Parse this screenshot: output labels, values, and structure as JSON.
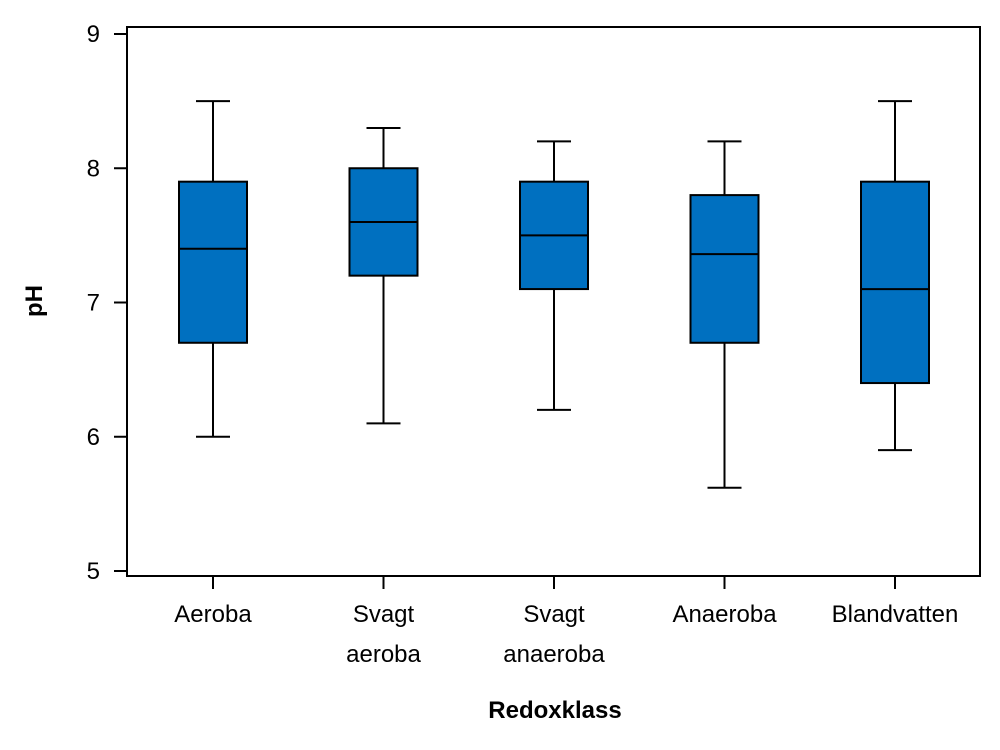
{
  "chart_data": {
    "type": "box",
    "title": "",
    "xlabel": "Redoxklass",
    "ylabel": "pH",
    "ylim": [
      5,
      9
    ],
    "yticks": [
      5,
      6,
      7,
      8,
      9
    ],
    "grid": false,
    "box_color": "#0070C0",
    "categories": [
      {
        "label_lines": [
          "Aeroba"
        ],
        "whisker_low": 6.0,
        "q1": 6.7,
        "median": 7.4,
        "q3": 7.9,
        "whisker_high": 8.5
      },
      {
        "label_lines": [
          "Svagt",
          "aeroba"
        ],
        "whisker_low": 6.1,
        "q1": 7.2,
        "median": 7.6,
        "q3": 8.0,
        "whisker_high": 8.3
      },
      {
        "label_lines": [
          "Svagt",
          "anaeroba"
        ],
        "whisker_low": 6.2,
        "q1": 7.1,
        "median": 7.5,
        "q3": 7.9,
        "whisker_high": 8.2
      },
      {
        "label_lines": [
          "Anaeroba"
        ],
        "whisker_low": 5.62,
        "q1": 6.7,
        "median": 7.36,
        "q3": 7.8,
        "whisker_high": 8.2
      },
      {
        "label_lines": [
          "Blandvatten"
        ],
        "whisker_low": 5.9,
        "q1": 6.4,
        "median": 7.1,
        "q3": 7.9,
        "whisker_high": 8.5
      }
    ]
  }
}
